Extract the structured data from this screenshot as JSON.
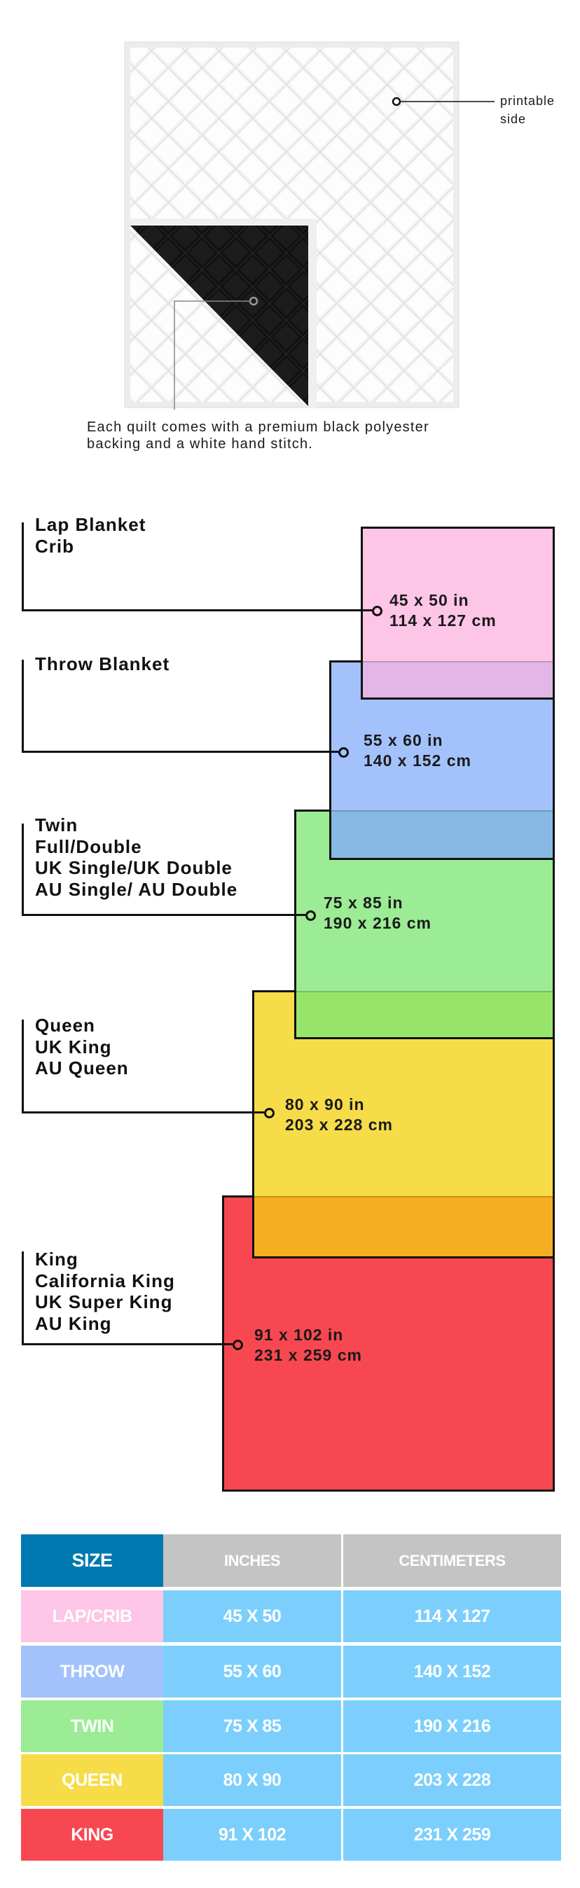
{
  "quilt": {
    "printable_label": [
      "printable",
      "side"
    ],
    "caption": [
      "Each quilt comes with a premium black polyester",
      "backing and a white hand stitch."
    ]
  },
  "sizes": [
    {
      "names": [
        "Lap Blanket",
        "Crib"
      ],
      "inches": "45 x 50 in",
      "cm": "114 x 127 cm",
      "color": "#fdc5e6"
    },
    {
      "names": [
        "Throw Blanket"
      ],
      "inches": "55 x 60 in",
      "cm": "140 x 152 cm",
      "color": "#a3c2fc"
    },
    {
      "names": [
        "Twin",
        "Full/Double",
        "UK Single/UK Double",
        "AU Single/ AU Double"
      ],
      "inches": "75 x 85 in",
      "cm": "190 x 216 cm",
      "color": "#9bec94"
    },
    {
      "names": [
        "Queen",
        "UK King",
        "AU Queen"
      ],
      "inches": "80 x 90 in",
      "cm": "203 x 228 cm",
      "color": "#f7dc4a"
    },
    {
      "names": [
        "King",
        "California King",
        "UK Super King",
        "AU King"
      ],
      "inches": "91 x 102 in",
      "cm": "231 x 259 cm",
      "color": "#f74851"
    }
  ],
  "table": {
    "headers": [
      "SIZE",
      "INCHES",
      "CENTIMETERS"
    ],
    "header_colors": [
      "#0079b0",
      "#c4c4c4",
      "#c4c4c4"
    ],
    "cell_color": "#7ccffc",
    "rows": [
      {
        "size": "LAP/CRIB",
        "inches": "45 X 50",
        "cm": "114 X 127",
        "color": "#fdc5e6"
      },
      {
        "size": "THROW",
        "inches": "55 X 60",
        "cm": "140 X 152",
        "color": "#a3c2fc"
      },
      {
        "size": "TWIN",
        "inches": "75 X 85",
        "cm": "190 X 216",
        "color": "#9bec94"
      },
      {
        "size": "QUEEN",
        "inches": "80 X 90",
        "cm": "203 X 228",
        "color": "#f7dc4a"
      },
      {
        "size": "KING",
        "inches": "91 X 102",
        "cm": "231 X 259",
        "color": "#f74851"
      }
    ]
  }
}
